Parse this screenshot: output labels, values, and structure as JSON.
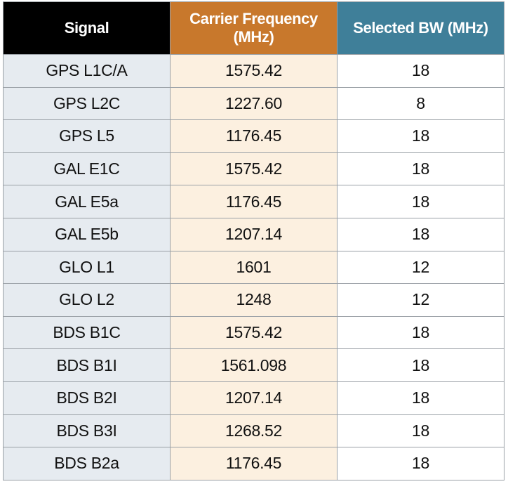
{
  "table": {
    "columns": [
      "Signal",
      "Carrier Frequency (MHz)",
      "Selected BW (MHz)"
    ],
    "rows": [
      [
        "GPS L1C/A",
        "1575.42",
        "18"
      ],
      [
        "GPS L2C",
        "1227.60",
        "8"
      ],
      [
        "GPS L5",
        "1176.45",
        "18"
      ],
      [
        "GAL E1C",
        "1575.42",
        "18"
      ],
      [
        "GAL E5a",
        "1176.45",
        "18"
      ],
      [
        "GAL E5b",
        "1207.14",
        "18"
      ],
      [
        "GLO L1",
        "1601",
        "12"
      ],
      [
        "GLO L2",
        "1248",
        "12"
      ],
      [
        "BDS B1C",
        "1575.42",
        "18"
      ],
      [
        "BDS B1I",
        "1561.098",
        "18"
      ],
      [
        "BDS B2I",
        "1207.14",
        "18"
      ],
      [
        "BDS B3I",
        "1268.52",
        "18"
      ],
      [
        "BDS B2a",
        "1176.45",
        "18"
      ]
    ]
  }
}
